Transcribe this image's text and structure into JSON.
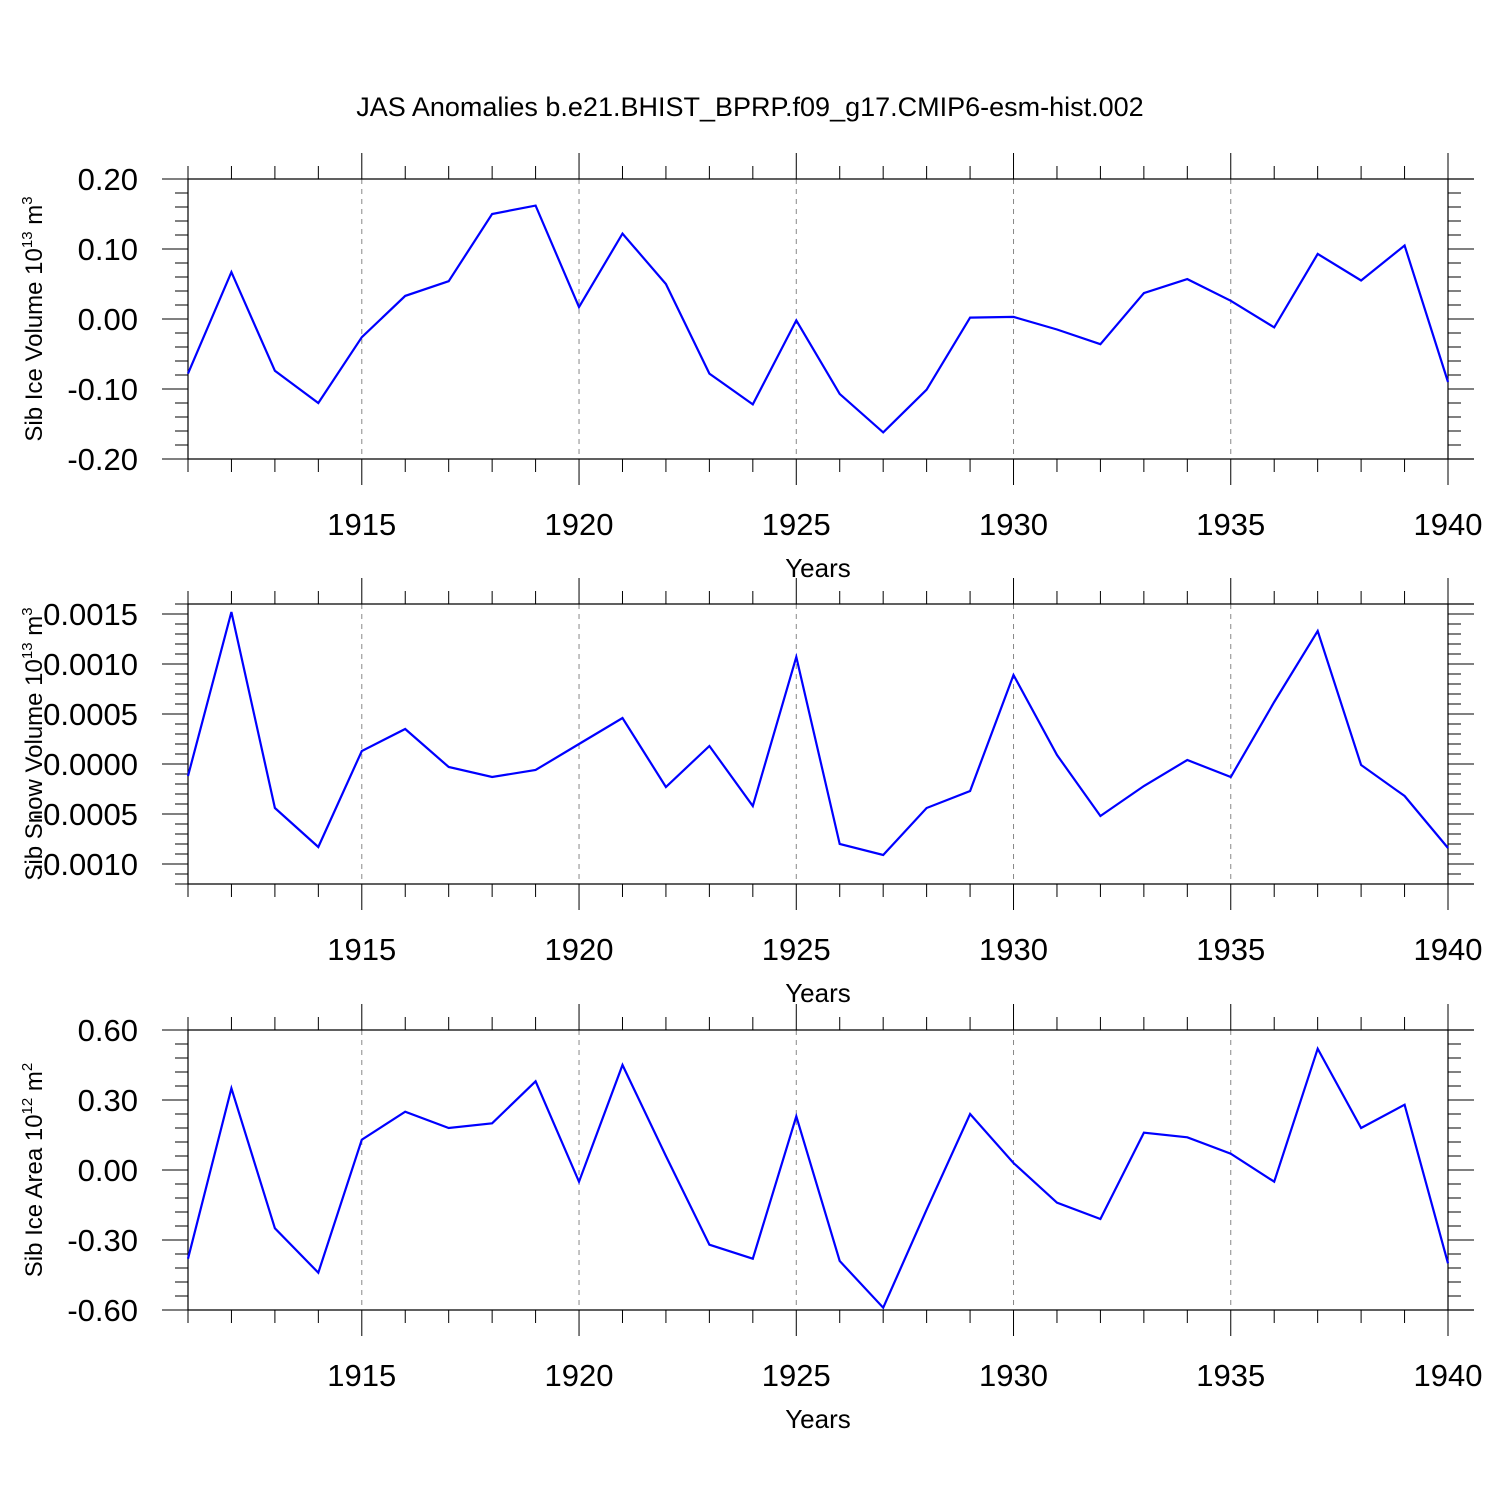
{
  "title": "JAS Anomalies b.e21.BHIST_BPRP.f09_g17.CMIP6-esm-hist.002",
  "colors": {
    "line": "#0000ff",
    "axis": "#000000",
    "grid": "#888888"
  },
  "chart_data": [
    {
      "type": "line",
      "ylabel": {
        "base": "Sib Ice Volume 10",
        "exp": "13",
        "unit": " m",
        "unit_exp": "3"
      },
      "xlabel": "Years",
      "xlim": [
        1911,
        1940
      ],
      "ylim": [
        -0.2,
        0.2
      ],
      "x_ticks": [
        "1915",
        "1920",
        "1925",
        "1930",
        "1935",
        "1940"
      ],
      "y_ticks": [
        "0.20",
        "0.10",
        "0.00",
        "-0.10",
        "-0.20"
      ],
      "x": [
        1911,
        1912,
        1913,
        1914,
        1915,
        1916,
        1917,
        1918,
        1919,
        1920,
        1921,
        1922,
        1923,
        1924,
        1925,
        1926,
        1927,
        1928,
        1929,
        1930,
        1931,
        1932,
        1933,
        1934,
        1935,
        1936,
        1937,
        1938,
        1939,
        1940
      ],
      "series": [
        {
          "values": [
            -0.078,
            0.067,
            -0.074,
            -0.12,
            -0.026,
            0.033,
            0.054,
            0.15,
            0.162,
            0.017,
            0.122,
            0.05,
            -0.078,
            -0.122,
            -0.002,
            -0.107,
            -0.162,
            -0.101,
            0.002,
            0.003,
            -0.015,
            -0.036,
            0.037,
            0.057,
            0.026,
            -0.012,
            0.093,
            0.055,
            0.105,
            -0.09
          ]
        }
      ]
    },
    {
      "type": "line",
      "ylabel": {
        "base": "Sib Snow Volume 10",
        "exp": "13",
        "unit": " m",
        "unit_exp": "3"
      },
      "xlabel": "Years",
      "xlim": [
        1911,
        1940
      ],
      "ylim": [
        -0.0012,
        0.0016
      ],
      "x_ticks": [
        "1915",
        "1920",
        "1925",
        "1930",
        "1935",
        "1940"
      ],
      "y_ticks": [
        "0.0015",
        "0.0010",
        "0.0005",
        "0.0000",
        "-0.0005",
        "-0.0010"
      ],
      "x": [
        1911,
        1912,
        1913,
        1914,
        1915,
        1916,
        1917,
        1918,
        1919,
        1920,
        1921,
        1922,
        1923,
        1924,
        1925,
        1926,
        1927,
        1928,
        1929,
        1930,
        1931,
        1932,
        1933,
        1934,
        1935,
        1936,
        1937,
        1938,
        1939,
        1940
      ],
      "series": [
        {
          "values": [
            -0.00012,
            0.00152,
            -0.00044,
            -0.00083,
            0.00013,
            0.00035,
            -3e-05,
            -0.00013,
            -6e-05,
            0.0002,
            0.00046,
            -0.00023,
            0.00018,
            -0.00042,
            0.00107,
            -0.0008,
            -0.00091,
            -0.00044,
            -0.00027,
            0.00089,
            9e-05,
            -0.00052,
            -0.00022,
            4e-05,
            -0.00013,
            0.00062,
            0.00133,
            -1e-05,
            -0.00032,
            -0.00084
          ]
        }
      ]
    },
    {
      "type": "line",
      "ylabel": {
        "base": "Sib Ice Area 10",
        "exp": "12",
        "unit": " m",
        "unit_exp": "2"
      },
      "xlabel": "Years",
      "xlim": [
        1911,
        1940
      ],
      "ylim": [
        -0.6,
        0.6
      ],
      "x_ticks": [
        "1915",
        "1920",
        "1925",
        "1930",
        "1935",
        "1940"
      ],
      "y_ticks": [
        "0.60",
        "0.30",
        "0.00",
        "-0.30",
        "-0.60"
      ],
      "x": [
        1911,
        1912,
        1913,
        1914,
        1915,
        1916,
        1917,
        1918,
        1919,
        1920,
        1921,
        1922,
        1923,
        1924,
        1925,
        1926,
        1927,
        1928,
        1929,
        1930,
        1931,
        1932,
        1933,
        1934,
        1935,
        1936,
        1937,
        1938,
        1939,
        1940
      ],
      "series": [
        {
          "values": [
            -0.38,
            0.35,
            -0.25,
            -0.44,
            0.13,
            0.25,
            0.18,
            0.2,
            0.38,
            -0.05,
            0.45,
            0.06,
            -0.32,
            -0.38,
            0.23,
            -0.39,
            -0.59,
            -0.17,
            0.24,
            0.03,
            -0.14,
            -0.21,
            0.16,
            0.14,
            0.07,
            -0.05,
            0.52,
            0.18,
            0.28,
            -0.4
          ]
        }
      ]
    }
  ]
}
